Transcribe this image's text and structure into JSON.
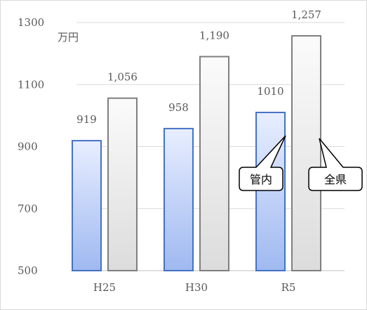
{
  "chart_data": {
    "type": "bar",
    "unit": "万円",
    "categories": [
      "H25",
      "H30",
      "R5"
    ],
    "series": [
      {
        "name": "管内",
        "values": [
          919,
          958,
          1010
        ],
        "labels": [
          "919",
          "958",
          "1010"
        ],
        "color": "#4472c4"
      },
      {
        "name": "全県",
        "values": [
          1056,
          1190,
          1257
        ],
        "labels": [
          "1,056",
          "1,190",
          "1,257"
        ],
        "color": "#a6a6a6"
      }
    ],
    "ylim": [
      500,
      1300
    ],
    "yticks": [
      500,
      700,
      900,
      1100,
      1300
    ],
    "ytick_labels": [
      "500",
      "700",
      "900",
      "1100",
      "1300"
    ],
    "grid": true,
    "callouts": [
      {
        "text": "管内",
        "series": 0
      },
      {
        "text": "全県",
        "series": 1
      }
    ]
  }
}
